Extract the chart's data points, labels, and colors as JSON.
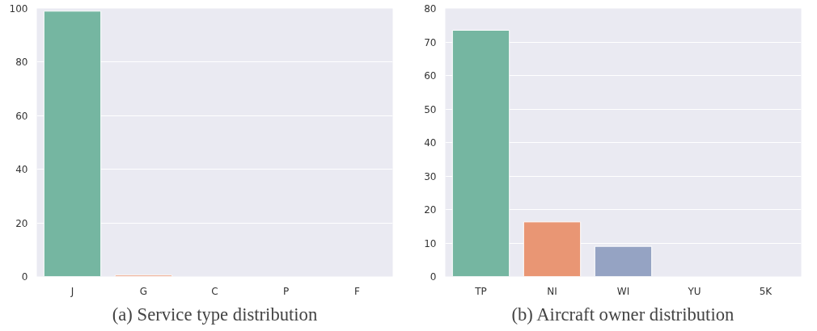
{
  "chart_data": [
    {
      "type": "bar",
      "categories": [
        "J",
        "G",
        "C",
        "P",
        "F"
      ],
      "values": [
        99,
        0.5,
        null,
        null,
        null
      ],
      "colors": [
        "#75b6a1",
        "#e99674",
        "#95a3c3",
        "#db96c0",
        "#a9c97d"
      ],
      "ylim": [
        0,
        100
      ],
      "yticks": [
        0,
        20,
        40,
        60,
        80,
        100
      ],
      "grid": "y",
      "annotations": [
        "(a) Service type distribution"
      ]
    },
    {
      "type": "bar",
      "categories": [
        "TP",
        "NI",
        "WI",
        "YU",
        "5K"
      ],
      "values": [
        73.5,
        16.3,
        9.0,
        null,
        null
      ],
      "colors": [
        "#75b6a1",
        "#e99674",
        "#95a3c3",
        "#db96c0",
        "#a9c97d"
      ],
      "ylim": [
        0,
        80
      ],
      "yticks": [
        0,
        10,
        20,
        30,
        40,
        50,
        60,
        70,
        80
      ],
      "grid": "y",
      "annotations": [
        "(b) Aircraft owner distribution"
      ]
    }
  ]
}
